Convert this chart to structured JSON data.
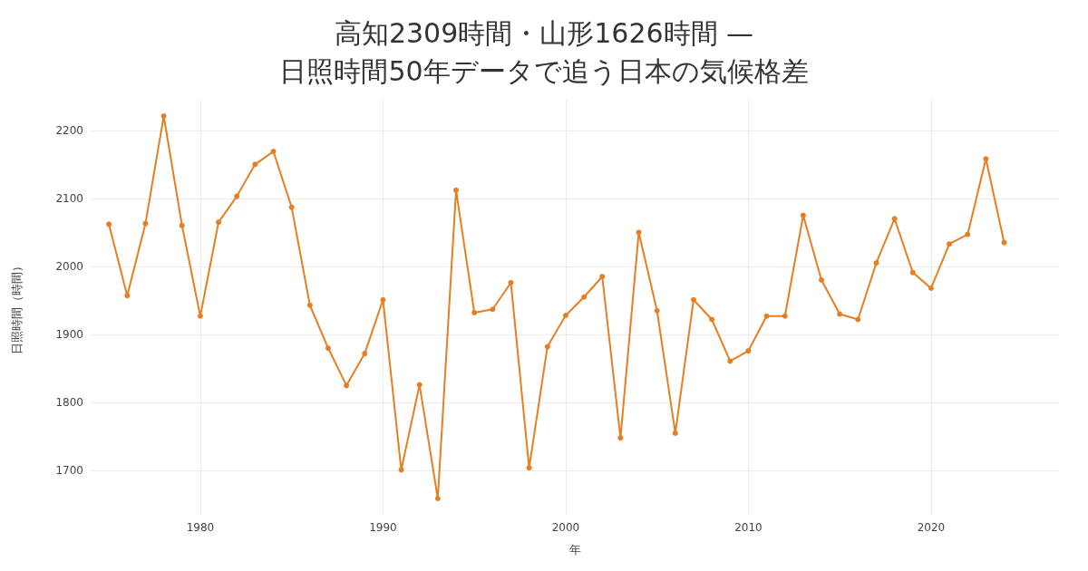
{
  "chart_data": {
    "type": "line",
    "title": "高知2309時間・山形1626時間 —\n日照時間50年データで追う日本の気候格差",
    "xlabel": "年",
    "ylabel": "日照時間（時間）",
    "x": [
      1975,
      1976,
      1977,
      1978,
      1979,
      1980,
      1981,
      1982,
      1983,
      1984,
      1985,
      1986,
      1987,
      1988,
      1989,
      1990,
      1991,
      1992,
      1993,
      1994,
      1995,
      1996,
      1997,
      1998,
      1999,
      2000,
      2001,
      2002,
      2003,
      2004,
      2005,
      2006,
      2007,
      2008,
      2009,
      2010,
      2011,
      2012,
      2013,
      2014,
      2015,
      2016,
      2017,
      2018,
      2019,
      2020,
      2021,
      2022,
      2023,
      2024
    ],
    "series": [
      {
        "color": "#e67e22",
        "values": [
          2062,
          1957,
          2063,
          2221,
          2060,
          1927,
          2065,
          2103,
          2150,
          2169,
          2087,
          1943,
          1880,
          1825,
          1872,
          1951,
          1701,
          1826,
          1659,
          2112,
          1932,
          1937,
          1976,
          1704,
          1882,
          1928,
          1955,
          1985,
          1748,
          2050,
          1935,
          1755,
          1951,
          1922,
          1861,
          1876,
          1927,
          1927,
          2075,
          1980,
          1930,
          1922,
          2005,
          2070,
          1991,
          1968,
          2033,
          2047,
          2158,
          2035
        ]
      }
    ],
    "xlim": [
      1974,
      2027
    ],
    "xticks": [
      1980,
      1990,
      2000,
      2010,
      2020
    ],
    "ylim": [
      1635,
      2245
    ],
    "yticks": [
      1700,
      1800,
      1900,
      2000,
      2100,
      2200
    ],
    "grid": true,
    "marker": "circle",
    "line_style": "solid"
  }
}
